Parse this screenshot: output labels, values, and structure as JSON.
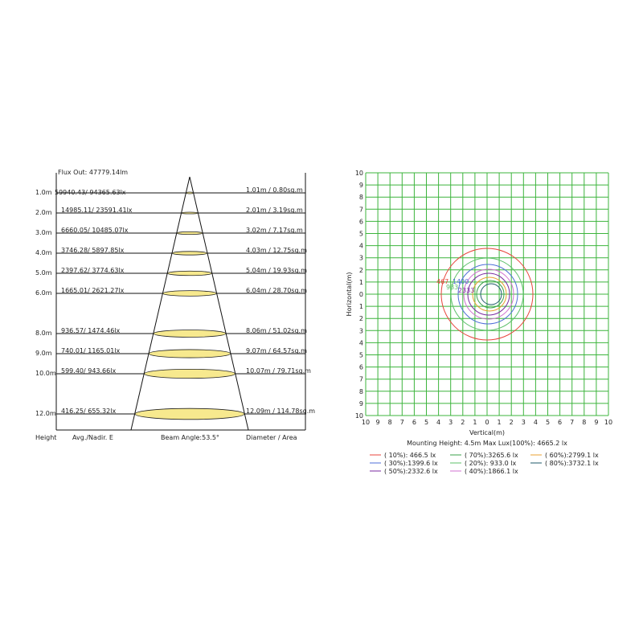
{
  "cone": {
    "flux_out": "Flux Out: 47779.14lm",
    "rows": [
      {
        "height": "1.0m",
        "illuminance": "59940.43/ 94365.63lx",
        "diameter": "1.01m / 0.80sq.m"
      },
      {
        "height": "2.0m",
        "illuminance": "14985.11/ 23591.41lx",
        "diameter": "2.01m / 3.19sq.m"
      },
      {
        "height": "3.0m",
        "illuminance": "6660.05/ 10485.07lx",
        "diameter": "3.02m / 7.17sq.m"
      },
      {
        "height": "4.0m",
        "illuminance": "3746.28/ 5897.85lx",
        "diameter": "4.03m / 12.75sq.m"
      },
      {
        "height": "5.0m",
        "illuminance": "2397.62/ 3774.63lx",
        "diameter": "5.04m / 19.93sq.m"
      },
      {
        "height": "6.0m",
        "illuminance": "1665.01/ 2621.27lx",
        "diameter": "6.04m / 28.70sq.m"
      },
      {
        "height": "8.0m",
        "illuminance": "936.57/ 1474.46lx",
        "diameter": "8.06m / 51.02sq.m"
      },
      {
        "height": "9.0m",
        "illuminance": "740.01/ 1165.01lx",
        "diameter": "9.07m / 64.57sq.m"
      },
      {
        "height": "10.0m",
        "illuminance": "599.40/ 943.66lx",
        "diameter": "10.07m / 79.71sq.m"
      },
      {
        "height": "12.0m",
        "illuminance": "416.25/ 655.32lx",
        "diameter": "12.09m / 114.78sq.m"
      }
    ],
    "footer": {
      "height": "Height",
      "illuminance": "Avg./Nadir. E",
      "beam_angle": "Beam Angle:53.5°",
      "diameter": "Diameter / Area"
    }
  },
  "isolux": {
    "y_label": "Horizontal(m)",
    "x_label": "Vertical(m)",
    "ticks": [
      "10",
      "9",
      "8",
      "7",
      "6",
      "5",
      "4",
      "3",
      "2",
      "1",
      "0",
      "1",
      "2",
      "3",
      "4",
      "5",
      "6",
      "7",
      "8",
      "9",
      "10"
    ],
    "contour_labels": [
      {
        "text": "467",
        "color": "#e8453c"
      },
      {
        "text": "1400",
        "color": "#4f6fd8"
      },
      {
        "text": "933",
        "color": "#5cc06a"
      },
      {
        "text": "2333",
        "color": "#7a2aa0"
      }
    ],
    "summary": "Mounting Height: 4.5m   Max Lux(100%): 4665.2 lx",
    "legend": [
      {
        "label": "( 10%): 466.5 lx",
        "color": "#e8453c"
      },
      {
        "label": "( 30%):1399.6 lx",
        "color": "#4f6fd8"
      },
      {
        "label": "( 50%):2332.6 lx",
        "color": "#7a2aa0"
      },
      {
        "label": "( 70%):3265.6 lx",
        "color": "#3aa04a"
      },
      {
        "label": "( 20%): 933.0 lx",
        "color": "#5cc06a"
      },
      {
        "label": "( 40%):1866.1 lx",
        "color": "#d070d0"
      },
      {
        "label": "( 60%):2799.1 lx",
        "color": "#e8a030"
      },
      {
        "label": "( 80%):3732.1 lx",
        "color": "#1e5a6a"
      }
    ]
  }
}
